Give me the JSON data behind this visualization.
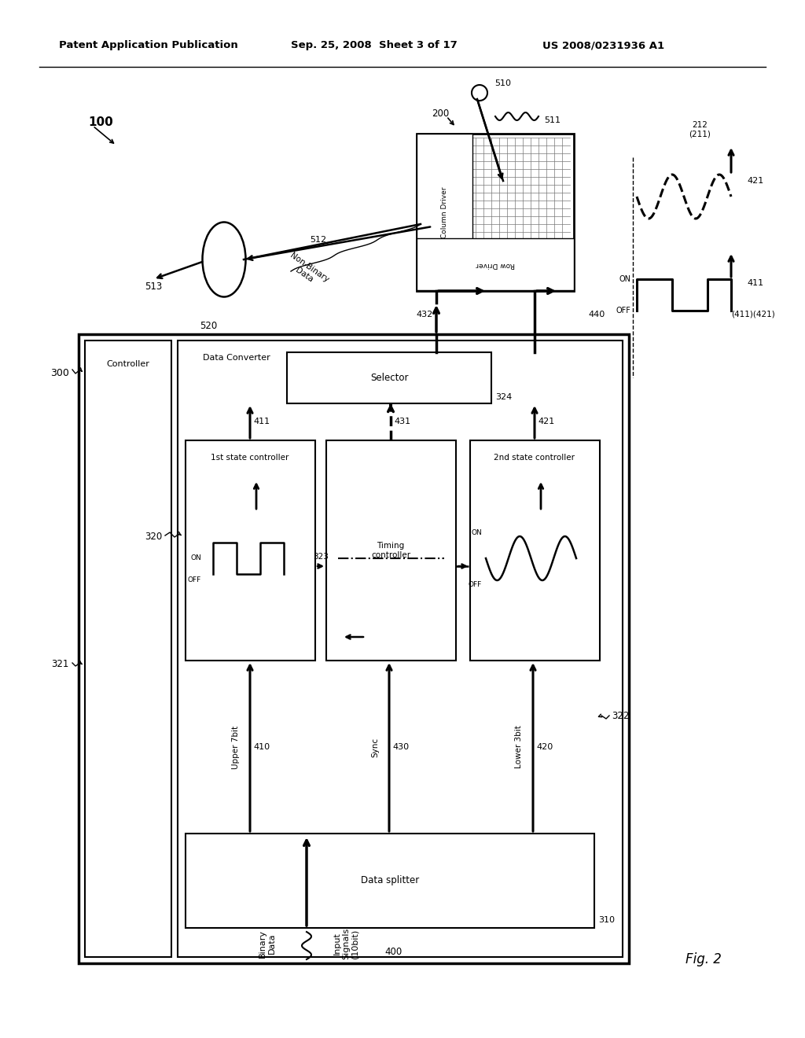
{
  "header_left": "Patent Application Publication",
  "header_center": "Sep. 25, 2008  Sheet 3 of 17",
  "header_right": "US 2008/0231936 A1",
  "fig_label": "Fig. 2",
  "bg_color": "#ffffff",
  "lc": "#000000"
}
